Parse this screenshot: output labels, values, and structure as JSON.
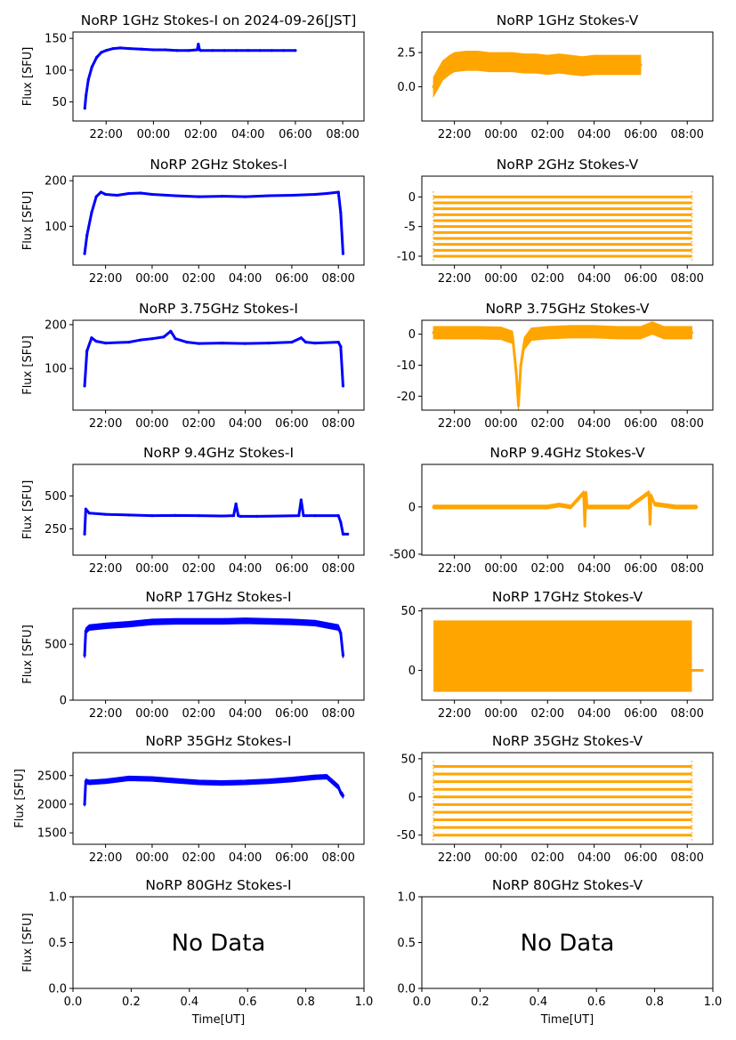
{
  "figure_title": "NoRP 1GHz Stokes-I on 2024-09-26[JST]",
  "colors": {
    "stokes_i": "#0000ff",
    "stokes_v": "#ffa500"
  },
  "chart_data": [
    {
      "id": "i1",
      "type": "line",
      "title": "NoRP 1GHz Stokes-I on 2024-09-26[JST]",
      "ylabel": "Flux [SFU]",
      "xlabel": "",
      "color": "#0000ff",
      "xlim": [
        20.6,
        32.9
      ],
      "ylim": [
        20,
        160
      ],
      "yticks": [
        50,
        100,
        150
      ],
      "xticks": [
        22,
        24,
        26,
        28,
        30,
        32
      ],
      "xticklabels": [
        "22:00",
        "00:00",
        "02:00",
        "04:00",
        "06:00",
        "08:00"
      ],
      "series": [
        {
          "name": "Stokes-I",
          "x": [
            21.1,
            21.15,
            21.25,
            21.4,
            21.6,
            21.8,
            22.0,
            22.3,
            22.6,
            23.0,
            23.5,
            24.0,
            24.5,
            25.0,
            25.5,
            25.85,
            25.9,
            25.95,
            26.0,
            26.5,
            27.0,
            27.5,
            28.0,
            28.5,
            29.0,
            29.5,
            30.0
          ],
          "y": [
            40,
            60,
            85,
            105,
            120,
            128,
            131,
            134,
            135,
            134,
            133,
            132,
            132,
            131,
            131,
            132,
            141,
            132,
            131,
            131,
            131,
            131,
            131,
            131,
            131,
            131,
            131
          ]
        }
      ]
    },
    {
      "id": "v1",
      "type": "scatter",
      "title": "NoRP 1GHz Stokes-V",
      "ylabel": "",
      "xlabel": "",
      "color": "#ffa500",
      "xlim": [
        20.6,
        33.1
      ],
      "ylim": [
        -2.5,
        4
      ],
      "yticks": [
        0,
        2.5
      ],
      "yticklabels": [
        "0.0",
        "2.5"
      ],
      "xticks": [
        22,
        24,
        26,
        28,
        30,
        32
      ],
      "xticklabels": [
        "22:00",
        "00:00",
        "02:00",
        "04:00",
        "06:00",
        "08:00"
      ],
      "series": [
        {
          "name": "Stokes-V",
          "x": [
            21.1,
            21.3,
            21.5,
            21.8,
            22.0,
            22.5,
            23.0,
            23.5,
            24.0,
            24.5,
            25.0,
            25.5,
            26.0,
            26.5,
            27.0,
            27.5,
            28.0,
            28.5,
            29.0,
            29.5,
            30.0
          ],
          "y": [
            0.0,
            0.6,
            1.2,
            1.6,
            1.8,
            1.9,
            1.9,
            1.8,
            1.8,
            1.8,
            1.7,
            1.7,
            1.6,
            1.7,
            1.6,
            1.5,
            1.6,
            1.6,
            1.6,
            1.6,
            1.6
          ]
        }
      ],
      "band": 0.7
    },
    {
      "id": "i2",
      "type": "line",
      "title": "NoRP 2GHz Stokes-I",
      "ylabel": "Flux [SFU]",
      "xlabel": "",
      "color": "#0000ff",
      "xlim": [
        20.6,
        33.1
      ],
      "ylim": [
        15,
        210
      ],
      "yticks": [
        100,
        200
      ],
      "xticks": [
        22,
        24,
        26,
        28,
        30,
        32
      ],
      "xticklabels": [
        "22:00",
        "00:00",
        "02:00",
        "04:00",
        "06:00",
        "08:00"
      ],
      "series": [
        {
          "name": "Stokes-I",
          "x": [
            21.1,
            21.2,
            21.4,
            21.6,
            21.8,
            22.0,
            22.5,
            23.0,
            23.5,
            24.0,
            25.0,
            26.0,
            27.0,
            28.0,
            29.0,
            30.0,
            31.0,
            31.5,
            32.0,
            32.1,
            32.2
          ],
          "y": [
            40,
            80,
            130,
            165,
            175,
            170,
            168,
            172,
            173,
            170,
            167,
            165,
            166,
            165,
            167,
            168,
            170,
            172,
            175,
            130,
            40
          ]
        }
      ]
    },
    {
      "id": "v2",
      "type": "scatter",
      "title": "NoRP 2GHz Stokes-V",
      "ylabel": "",
      "xlabel": "",
      "color": "#ffa500",
      "xlim": [
        20.6,
        33.1
      ],
      "ylim": [
        -11.5,
        3.5
      ],
      "yticks": [
        -10,
        -5,
        0
      ],
      "xticks": [
        22,
        24,
        26,
        28,
        30,
        32
      ],
      "xticklabels": [
        "22:00",
        "00:00",
        "02:00",
        "04:00",
        "06:00",
        "08:00"
      ],
      "levels": [
        0,
        -1,
        -2,
        -3,
        -4,
        -5,
        -6,
        -7,
        -8,
        -9,
        -10
      ],
      "x_range": [
        21.1,
        32.2
      ]
    },
    {
      "id": "i3",
      "type": "line",
      "title": "NoRP 3.75GHz Stokes-I",
      "ylabel": "Flux [SFU]",
      "xlabel": "",
      "color": "#0000ff",
      "xlim": [
        20.6,
        33.1
      ],
      "ylim": [
        5,
        210
      ],
      "yticks": [
        100,
        200
      ],
      "xticks": [
        22,
        24,
        26,
        28,
        30,
        32
      ],
      "xticklabels": [
        "22:00",
        "00:00",
        "02:00",
        "04:00",
        "06:00",
        "08:00"
      ],
      "series": [
        {
          "name": "Stokes-I",
          "x": [
            21.1,
            21.2,
            21.4,
            21.6,
            22.0,
            23.0,
            23.5,
            24.0,
            24.5,
            24.8,
            25.0,
            25.5,
            26.0,
            27.0,
            28.0,
            29.0,
            30.0,
            30.4,
            30.6,
            31.0,
            32.0,
            32.1,
            32.2
          ],
          "y": [
            60,
            140,
            170,
            162,
            158,
            160,
            165,
            168,
            172,
            185,
            168,
            160,
            157,
            158,
            157,
            158,
            160,
            170,
            160,
            158,
            160,
            150,
            60
          ]
        }
      ]
    },
    {
      "id": "v3",
      "type": "scatter",
      "title": "NoRP 3.75GHz Stokes-V",
      "ylabel": "",
      "xlabel": "",
      "color": "#ffa500",
      "xlim": [
        20.6,
        33.1
      ],
      "ylim": [
        -24.5,
        4.5
      ],
      "yticks": [
        -20,
        -10,
        0
      ],
      "xticks": [
        22,
        24,
        26,
        28,
        30,
        32
      ],
      "xticklabels": [
        "22:00",
        "00:00",
        "02:00",
        "04:00",
        "06:00",
        "08:00"
      ],
      "series": [
        {
          "name": "Stokes-V",
          "x": [
            21.1,
            22.0,
            23.0,
            24.0,
            24.5,
            24.65,
            24.75,
            24.85,
            25.0,
            25.3,
            26.0,
            27.0,
            28.0,
            29.0,
            30.0,
            30.5,
            31.0,
            32.0,
            32.2
          ],
          "y": [
            0.5,
            0.5,
            0.5,
            0.3,
            -1,
            -12,
            -23,
            -10,
            -3,
            0,
            0.5,
            0.8,
            0.8,
            0.5,
            0.5,
            2,
            0.5,
            0.5,
            0.5
          ]
        }
      ],
      "band": 2.0
    },
    {
      "id": "i4",
      "type": "line",
      "title": "NoRP 9.4GHz Stokes-I",
      "ylabel": "Flux [SFU]",
      "xlabel": "",
      "color": "#0000ff",
      "xlim": [
        20.6,
        33.1
      ],
      "ylim": [
        50,
        740
      ],
      "yticks": [
        250,
        500
      ],
      "xticks": [
        22,
        24,
        26,
        28,
        30,
        32
      ],
      "xticklabels": [
        "22:00",
        "00:00",
        "02:00",
        "04:00",
        "06:00",
        "08:00"
      ],
      "series": [
        {
          "name": "Stokes-I",
          "x": [
            21.1,
            21.15,
            21.3,
            22.0,
            23.0,
            24.0,
            25.0,
            26.0,
            27.0,
            27.5,
            27.6,
            27.7,
            27.8,
            28.5,
            29.5,
            30.3,
            30.4,
            30.5,
            31.0,
            32.0,
            32.1,
            32.2,
            32.4
          ],
          "y": [
            210,
            400,
            370,
            360,
            355,
            350,
            352,
            350,
            348,
            350,
            440,
            350,
            345,
            345,
            348,
            350,
            470,
            350,
            350,
            350,
            300,
            210,
            210
          ]
        }
      ]
    },
    {
      "id": "v4",
      "type": "scatter",
      "title": "NoRP 9.4GHz Stokes-V",
      "ylabel": "",
      "xlabel": "",
      "color": "#ffa500",
      "xlim": [
        20.6,
        33.1
      ],
      "ylim": [
        -510,
        450
      ],
      "yticks": [
        -500,
        0
      ],
      "xticks": [
        22,
        24,
        26,
        28,
        30,
        32
      ],
      "xticklabels": [
        "22:00",
        "00:00",
        "02:00",
        "04:00",
        "06:00",
        "08:00"
      ],
      "series": [
        {
          "name": "Stokes-V",
          "x": [
            21.1,
            22.0,
            23.0,
            24.0,
            25.0,
            26.0,
            26.5,
            27.0,
            27.55,
            27.6,
            27.65,
            27.7,
            28.5,
            29.5,
            30.35,
            30.4,
            30.45,
            30.6,
            31.5,
            32.4
          ],
          "y": [
            0,
            0,
            0,
            0,
            0,
            0,
            20,
            0,
            150,
            -200,
            150,
            0,
            0,
            0,
            150,
            -180,
            120,
            30,
            0,
            0
          ]
        }
      ],
      "band": 20
    },
    {
      "id": "i5",
      "type": "line",
      "title": "NoRP 17GHz Stokes-I",
      "ylabel": "Flux [SFU]",
      "xlabel": "",
      "color": "#0000ff",
      "xlim": [
        20.6,
        33.1
      ],
      "ylim": [
        0,
        820
      ],
      "yticks": [
        0,
        500
      ],
      "xticks": [
        22,
        24,
        26,
        28,
        30,
        32
      ],
      "xticklabels": [
        "22:00",
        "00:00",
        "02:00",
        "04:00",
        "06:00",
        "08:00"
      ],
      "series": [
        {
          "name": "Stokes-I",
          "x": [
            21.1,
            21.15,
            21.3,
            22.0,
            23.0,
            24.0,
            25.0,
            26.0,
            27.0,
            28.0,
            29.0,
            30.0,
            31.0,
            31.5,
            32.0,
            32.1,
            32.2
          ],
          "y": [
            400,
            620,
            650,
            665,
            680,
            700,
            705,
            705,
            705,
            710,
            705,
            700,
            690,
            670,
            650,
            600,
            400
          ]
        }
      ],
      "band": 25
    },
    {
      "id": "v5",
      "type": "scatter",
      "title": "NoRP 17GHz Stokes-V",
      "ylabel": "",
      "xlabel": "",
      "color": "#ffa500",
      "xlim": [
        20.6,
        33.1
      ],
      "ylim": [
        -25,
        52
      ],
      "yticks": [
        0,
        50
      ],
      "xticks": [
        22,
        24,
        26,
        28,
        30,
        32
      ],
      "xticklabels": [
        "22:00",
        "00:00",
        "02:00",
        "04:00",
        "06:00",
        "08:00"
      ],
      "series": [
        {
          "name": "Stokes-V",
          "x": [
            21.1,
            32.2
          ],
          "y": [
            12,
            12
          ]
        }
      ],
      "fill_range": [
        -18,
        42
      ]
    },
    {
      "id": "i6",
      "type": "line",
      "title": "NoRP 35GHz Stokes-I",
      "ylabel": "Flux [SFU]",
      "xlabel": "",
      "color": "#0000ff",
      "xlim": [
        20.6,
        33.1
      ],
      "ylim": [
        1300,
        2900
      ],
      "yticks": [
        1500,
        2000,
        2500
      ],
      "xticks": [
        22,
        24,
        26,
        28,
        30,
        32
      ],
      "xticklabels": [
        "22:00",
        "00:00",
        "02:00",
        "04:00",
        "06:00",
        "08:00"
      ],
      "series": [
        {
          "name": "Stokes-I",
          "x": [
            21.1,
            21.15,
            21.3,
            22.0,
            23.0,
            24.0,
            25.0,
            26.0,
            27.0,
            28.0,
            29.0,
            30.0,
            31.0,
            31.5,
            32.0,
            32.1,
            32.2
          ],
          "y": [
            2000,
            2400,
            2380,
            2400,
            2450,
            2440,
            2410,
            2380,
            2370,
            2380,
            2400,
            2430,
            2470,
            2480,
            2300,
            2200,
            2150
          ]
        }
      ],
      "band": 40
    },
    {
      "id": "v6",
      "type": "scatter",
      "title": "NoRP 35GHz Stokes-V",
      "ylabel": "",
      "xlabel": "",
      "color": "#ffa500",
      "xlim": [
        20.6,
        33.1
      ],
      "ylim": [
        -62,
        58
      ],
      "yticks": [
        -50,
        0,
        50
      ],
      "xticks": [
        22,
        24,
        26,
        28,
        30,
        32
      ],
      "xticklabels": [
        "22:00",
        "00:00",
        "02:00",
        "04:00",
        "06:00",
        "08:00"
      ],
      "levels": [
        40,
        30,
        20,
        10,
        0,
        -10,
        -20,
        -30,
        -40,
        -50
      ],
      "x_range": [
        21.1,
        32.2
      ]
    },
    {
      "id": "i7",
      "type": "line",
      "title": "NoRP 80GHz Stokes-I",
      "ylabel": "Flux [SFU]",
      "xlabel": "Time[UT]",
      "color": "#0000ff",
      "xlim": [
        0,
        1
      ],
      "ylim": [
        0,
        1
      ],
      "yticks": [
        0,
        0.5,
        1
      ],
      "yticklabels": [
        "0.0",
        "0.5",
        "1.0"
      ],
      "xticks": [
        0,
        0.2,
        0.4,
        0.6,
        0.8,
        1
      ],
      "xticklabels": [
        "0.0",
        "0.2",
        "0.4",
        "0.6",
        "0.8",
        "1.0"
      ],
      "series": [],
      "no_data_text": "No Data"
    },
    {
      "id": "v7",
      "type": "scatter",
      "title": "NoRP 80GHz Stokes-V",
      "ylabel": "",
      "xlabel": "Time[UT]",
      "color": "#ffa500",
      "xlim": [
        0,
        1
      ],
      "ylim": [
        0,
        1
      ],
      "yticks": [
        0,
        0.5,
        1
      ],
      "yticklabels": [
        "0.0",
        "0.5",
        "1.0"
      ],
      "xticks": [
        0,
        0.2,
        0.4,
        0.6,
        0.8,
        1
      ],
      "xticklabels": [
        "0.0",
        "0.2",
        "0.4",
        "0.6",
        "0.8",
        "1.0"
      ],
      "series": [],
      "no_data_text": "No Data"
    }
  ]
}
